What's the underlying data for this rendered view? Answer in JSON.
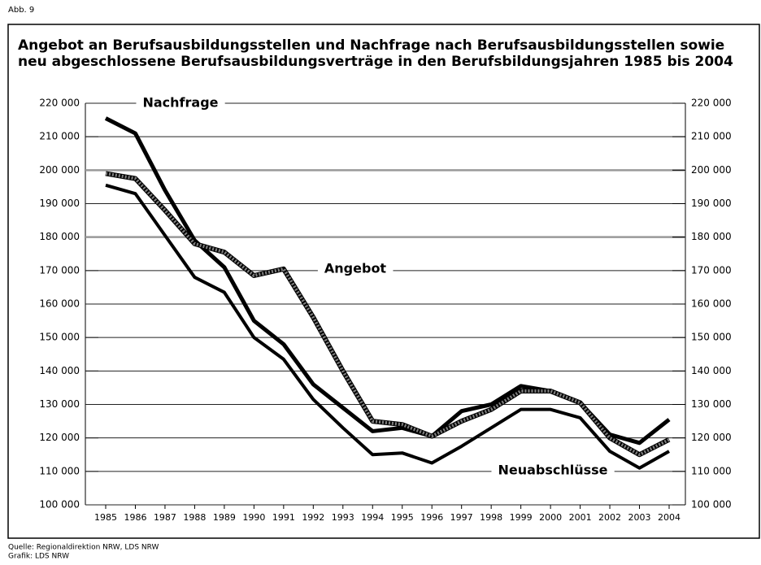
{
  "header": "Abb. 9",
  "chart_data": {
    "type": "line",
    "title": "Angebot an Berufsausbildungsstellen und Nachfrage nach Berufsausbildungsstellen sowie",
    "subtitle": "neu abgeschlossene Berufsausbildungsverträge in den Berufsbildungsjahren 1985 bis 2004",
    "categories": [
      "1985",
      "1986",
      "1987",
      "1988",
      "1989",
      "1990",
      "1991",
      "1992",
      "1993",
      "1994",
      "1995",
      "1996",
      "1997",
      "1998",
      "1999",
      "2000",
      "2001",
      "2002",
      "2003",
      "2004"
    ],
    "series": [
      {
        "name": "Nachfrage",
        "color": "#000000",
        "values": [
          215500,
          211000,
          194000,
          179000,
          171000,
          155000,
          148000,
          136000,
          129000,
          122000,
          123000,
          120500,
          128000,
          130000,
          135500,
          134000,
          130500,
          121000,
          118500,
          125500
        ]
      },
      {
        "name": "Angebot",
        "color": "#808080",
        "values": [
          199000,
          197500,
          188000,
          178000,
          175500,
          168500,
          170500,
          156000,
          140000,
          125000,
          124000,
          120500,
          125000,
          128500,
          134000,
          134000,
          130500,
          120000,
          115000,
          119500
        ]
      },
      {
        "name": "Neuabschlüsse",
        "color": "#000000",
        "values": [
          195500,
          193000,
          180500,
          168000,
          163500,
          150000,
          143500,
          131500,
          123000,
          115000,
          115500,
          112500,
          117500,
          123000,
          128500,
          128500,
          126000,
          116000,
          111000,
          116000
        ]
      }
    ],
    "ylim": [
      100000,
      220000
    ],
    "yticks": [
      {
        "value": 100000,
        "label": "100 000"
      },
      {
        "value": 110000,
        "label": "110 000"
      },
      {
        "value": 120000,
        "label": "120 000"
      },
      {
        "value": 130000,
        "label": "130 000"
      },
      {
        "value": 140000,
        "label": "140 000"
      },
      {
        "value": 150000,
        "label": "150 000"
      },
      {
        "value": 160000,
        "label": "160 000"
      },
      {
        "value": 170000,
        "label": "170 000"
      },
      {
        "value": 180000,
        "label": "180 000"
      },
      {
        "value": 190000,
        "label": "190 000"
      },
      {
        "value": 200000,
        "label": "200 000"
      },
      {
        "value": 210000,
        "label": "210 000"
      },
      {
        "value": 220000,
        "label": "220 000"
      }
    ],
    "y2lim": [
      100000,
      220000
    ],
    "y2ticks": [
      {
        "value": 100000,
        "label": "100 000"
      },
      {
        "value": 110000,
        "label": "110 000"
      },
      {
        "value": 120000,
        "label": "120 000"
      },
      {
        "value": 130000,
        "label": "130 000"
      },
      {
        "value": 140000,
        "label": "140 000"
      },
      {
        "value": 150000,
        "label": "150 000"
      },
      {
        "value": 160000,
        "label": "160 000"
      },
      {
        "value": 170000,
        "label": "170 000"
      },
      {
        "value": 180000,
        "label": "180 000"
      },
      {
        "value": 190000,
        "label": "190 000"
      },
      {
        "value": 200000,
        "label": "200 000"
      },
      {
        "value": 210000,
        "label": "210 000"
      },
      {
        "value": 220000,
        "label": "220 000"
      }
    ],
    "grid": true
  },
  "source": [
    "Quelle: Regionaldirektion NRW, LDS NRW",
    "Grafik: LDS NRW"
  ]
}
